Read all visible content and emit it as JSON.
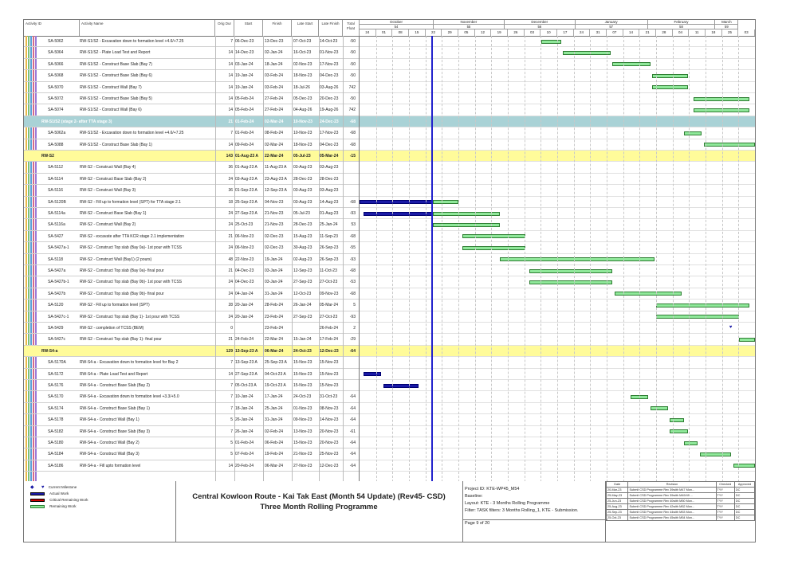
{
  "columns": {
    "activity_id": "Activity ID",
    "activity_name": "Activity Name",
    "orig_dur": "Orig Dur",
    "start": "Start",
    "finish": "Finish",
    "late_start": "Late Start",
    "late_finish": "Late Finish",
    "total_float": "Total Float"
  },
  "timescale": {
    "months": [
      {
        "label": "October",
        "num": "54"
      },
      {
        "label": "November",
        "num": "55"
      },
      {
        "label": "December",
        "num": "56"
      },
      {
        "label": "January",
        "num": "57"
      },
      {
        "label": "February",
        "num": "58"
      },
      {
        "label": "March",
        "num": "59"
      }
    ],
    "days": [
      "24",
      "01",
      "08",
      "15",
      "22",
      "29",
      "05",
      "12",
      "19",
      "26",
      "03",
      "10",
      "17",
      "24",
      "31",
      "07",
      "14",
      "21",
      "28",
      "04",
      "11",
      "18",
      "25",
      "03"
    ]
  },
  "rows": [
    {
      "type": "task",
      "id": "SA-5062",
      "name": "RW-S1/S2 - Excavation down to formation level +4.6/+7.25",
      "dur": "7",
      "start": "06-Dec-23",
      "finish": "13-Dec-23",
      "ls": "07-Oct-23",
      "lf": "14-Oct-23",
      "tf": "-50",
      "bar": {
        "kind": "rem",
        "s": 0.46,
        "e": 0.51
      }
    },
    {
      "type": "task",
      "id": "SA-5064",
      "name": "RW-S1/S2 - Plate Load Test and Report",
      "dur": "14",
      "start": "14-Dec-23",
      "finish": "02-Jan-24",
      "ls": "16-Oct-23",
      "lf": "01-Nov-23",
      "tf": "-50",
      "bar": {
        "kind": "rem",
        "s": 0.515,
        "e": 0.635
      }
    },
    {
      "type": "task",
      "id": "SA-5066",
      "name": "RW-S1/S2 - Construct Base Slab (Bay 7)",
      "dur": "14",
      "start": "03-Jan-24",
      "finish": "18-Jan-24",
      "ls": "02-Nov-23",
      "lf": "17-Nov-23",
      "tf": "-50",
      "bar": {
        "kind": "rem",
        "s": 0.64,
        "e": 0.735
      }
    },
    {
      "type": "task",
      "id": "SA-5068",
      "name": "RW-S1/S2 - Construct Base Slab (Bay 6)",
      "dur": "14",
      "start": "19-Jan-24",
      "finish": "03-Feb-24",
      "ls": "18-Nov-23",
      "lf": "04-Dec-23",
      "tf": "-50",
      "bar": {
        "kind": "rem",
        "s": 0.74,
        "e": 0.83
      }
    },
    {
      "type": "task",
      "id": "SA-5070",
      "name": "RW-S1/S2 - Construct Wall (Bay 7)",
      "dur": "14",
      "start": "19-Jan-24",
      "finish": "03-Feb-24",
      "ls": "18-Jul-26",
      "lf": "03-Aug-26",
      "tf": "742",
      "bar": {
        "kind": "rem",
        "s": 0.74,
        "e": 0.83
      }
    },
    {
      "type": "task",
      "id": "SA-5072",
      "name": "RW-S1/S2 - Construct Base Slab (Bay 5)",
      "dur": "14",
      "start": "05-Feb-24",
      "finish": "27-Feb-24",
      "ls": "05-Dec-23",
      "lf": "20-Dec-23",
      "tf": "-50",
      "bar": {
        "kind": "rem",
        "s": 0.845,
        "e": 0.985
      }
    },
    {
      "type": "task",
      "id": "SA-5074",
      "name": "RW-S1/S2 - Construct Wall (Bay 6)",
      "dur": "14",
      "start": "05-Feb-24",
      "finish": "27-Feb-24",
      "ls": "04-Aug-26",
      "lf": "19-Aug-26",
      "tf": "742",
      "bar": {
        "kind": "rem",
        "s": 0.845,
        "e": 0.985
      }
    },
    {
      "type": "group-t",
      "id": "RW-S1/S2 (stage 2- after TTA stage 3)",
      "dur": "21",
      "start": "01-Feb-24",
      "finish": "02-Mar-24",
      "ls": "10-Nov-23",
      "lf": "24-Dec-23",
      "tf": "-68"
    },
    {
      "type": "task",
      "id": "SA-5062a",
      "name": "RW-S1/S2 - Excavation down to formation level +4.6/+7.25",
      "dur": "7",
      "start": "01-Feb-24",
      "finish": "08-Feb-24",
      "ls": "10-Nov-23",
      "lf": "17-Nov-23",
      "tf": "-68",
      "bar": {
        "kind": "rem",
        "s": 0.82,
        "e": 0.865
      }
    },
    {
      "type": "task",
      "id": "SA-5088",
      "name": "RW-S1/S2 - Construct Base Slab (Bay 1)",
      "dur": "14",
      "start": "09-Feb-24",
      "finish": "02-Mar-24",
      "ls": "18-Nov-23",
      "lf": "04-Dec-23",
      "tf": "-68",
      "bar": {
        "kind": "rem",
        "s": 0.87,
        "e": 1.0
      }
    },
    {
      "type": "group-y",
      "id": "RW-S2",
      "dur": "143",
      "start": "01-Aug-23 A",
      "finish": "22-Mar-24",
      "ls": "05-Jul-23",
      "lf": "05-Mar-24",
      "tf": "-15"
    },
    {
      "type": "task",
      "id": "SA-5112",
      "name": "RW-S2 - Construct Wall (Bay 4)",
      "dur": "36",
      "start": "01-Aug-23 A",
      "finish": "11-Aug-23 A",
      "ls": "03-Aug-23",
      "lf": "03-Aug-23",
      "tf": ""
    },
    {
      "type": "task",
      "id": "SA-5114",
      "name": "RW-S2 - Construct Base Slab (Bay 2)",
      "dur": "24",
      "start": "03-Aug-23 A",
      "finish": "23-Aug-23 A",
      "ls": "28-Dec-23",
      "lf": "28-Dec-23",
      "tf": ""
    },
    {
      "type": "task",
      "id": "SA-5116",
      "name": "RW-S2 - Construct Wall (Bay 3)",
      "dur": "36",
      "start": "01-Sep-23 A",
      "finish": "12-Sep-23 A",
      "ls": "03-Aug-23",
      "lf": "03-Aug-23",
      "tf": ""
    },
    {
      "type": "task",
      "id": "SA-5120B",
      "name": "RW-S2 - Fill up to formation level (SPT) for TTA stage 2.1",
      "dur": "18",
      "start": "25-Sep-23 A",
      "finish": "04-Nov-23",
      "ls": "03-Aug-23",
      "lf": "14-Aug-23",
      "tf": "-68",
      "bar": {
        "kind": "act",
        "s": 0.0,
        "e": 0.185
      },
      "bar2": {
        "kind": "rem",
        "s": 0.185,
        "e": 0.25
      }
    },
    {
      "type": "task",
      "id": "SA-5114a",
      "name": "RW-S2 - Construct Base Slab (Bay 1)",
      "dur": "24",
      "start": "27-Sep-23 A",
      "finish": "21-Nov-23",
      "ls": "05-Jul-23",
      "lf": "01-Aug-23",
      "tf": "-93",
      "bar": {
        "kind": "act",
        "s": 0.01,
        "e": 0.185
      },
      "bar2": {
        "kind": "rem",
        "s": 0.185,
        "e": 0.355
      }
    },
    {
      "type": "task",
      "id": "SA-5116a",
      "name": "RW-S2 - Construct Wall (Bay 2)",
      "dur": "24",
      "start": "25-Oct-23",
      "finish": "21-Nov-23",
      "ls": "28-Dec-23",
      "lf": "25-Jan-24",
      "tf": "53",
      "bar": {
        "kind": "rem",
        "s": 0.185,
        "e": 0.355
      }
    },
    {
      "type": "task",
      "id": "SA-5427",
      "name": "RW-S2 - excavate after TTA KCR stage 2.1 implementation",
      "dur": "21",
      "start": "06-Nov-23",
      "finish": "02-Dec-23",
      "ls": "15-Aug-23",
      "lf": "11-Sep-23",
      "tf": "-68",
      "bar": {
        "kind": "rem",
        "s": 0.26,
        "e": 0.42
      }
    },
    {
      "type": "task",
      "id": "SA-5427a-1",
      "name": "RW-S2 - Construct Top slab (Bay 0a)- 1st pour with TCSS",
      "dur": "24",
      "start": "06-Nov-23",
      "finish": "02-Dec-23",
      "ls": "30-Aug-23",
      "lf": "26-Sep-23",
      "tf": "-55",
      "bar": {
        "kind": "rem",
        "s": 0.26,
        "e": 0.42
      }
    },
    {
      "type": "task",
      "id": "SA-5118",
      "name": "RW-S2 - Construct Wall (Bay1) (2 pours)",
      "dur": "48",
      "start": "22-Nov-23",
      "finish": "19-Jan-24",
      "ls": "02-Aug-23",
      "lf": "26-Sep-23",
      "tf": "-93",
      "bar": {
        "kind": "rem",
        "s": 0.355,
        "e": 0.745
      }
    },
    {
      "type": "task",
      "id": "SA-5427a",
      "name": "RW-S2 - Construct Top slab (Bay 0a)- final pour",
      "dur": "21",
      "start": "04-Dec-23",
      "finish": "03-Jan-24",
      "ls": "12-Sep-23",
      "lf": "11-Oct-23",
      "tf": "-68",
      "bar": {
        "kind": "rem",
        "s": 0.43,
        "e": 0.64
      }
    },
    {
      "type": "task",
      "id": "SA-5427b-1",
      "name": "RW-S2 - Construct Top slab (Bay 0b)- 1st pour with TCSS",
      "dur": "24",
      "start": "04-Dec-23",
      "finish": "03-Jan-24",
      "ls": "27-Sep-23",
      "lf": "27-Oct-23",
      "tf": "-53",
      "bar": {
        "kind": "rem",
        "s": 0.43,
        "e": 0.64
      }
    },
    {
      "type": "task",
      "id": "SA-5427b",
      "name": "RW-S2 - Construct Top slab (Bay 0b)- final pour",
      "dur": "24",
      "start": "04-Jan-24",
      "finish": "31-Jan-24",
      "ls": "12-Oct-23",
      "lf": "09-Nov-23",
      "tf": "-68",
      "bar": {
        "kind": "rem",
        "s": 0.645,
        "e": 0.815
      }
    },
    {
      "type": "task",
      "id": "SA-5120",
      "name": "RW-S2 - Fill up to formation level (SPT)",
      "dur": "28",
      "start": "20-Jan-24",
      "finish": "28-Feb-24",
      "ls": "26-Jan-24",
      "lf": "05-Mar-24",
      "tf": "5",
      "bar": {
        "kind": "rem",
        "s": 0.75,
        "e": 0.985
      }
    },
    {
      "type": "task",
      "id": "SA-5427c-1",
      "name": "RW-S2 - Construct Top slab (Bay 1)- 1st pour with TCSS",
      "dur": "24",
      "start": "20-Jan-24",
      "finish": "23-Feb-24",
      "ls": "27-Sep-23",
      "lf": "27-Oct-23",
      "tf": "-93",
      "bar": {
        "kind": "rem",
        "s": 0.75,
        "e": 0.96
      }
    },
    {
      "type": "task",
      "id": "SA-5429",
      "name": "RW-S2 - completion of TCSS (BEM)",
      "dur": "0",
      "start": "",
      "finish": "23-Feb-24",
      "ls": "",
      "lf": "26-Feb-24",
      "tf": "2",
      "ms": 0.935
    },
    {
      "type": "task",
      "id": "SA-5427c",
      "name": "RW-S2 - Construct Top slab (Bay 1)- final pour",
      "dur": "21",
      "start": "24-Feb-24",
      "finish": "22-Mar-24",
      "ls": "15-Jan-24",
      "lf": "17-Feb-24",
      "tf": "-29",
      "bar": {
        "kind": "rem",
        "s": 0.96,
        "e": 1.0
      }
    },
    {
      "type": "group-y",
      "id": "RW-S4-a",
      "dur": "129",
      "start": "13-Sep-23 A",
      "finish": "06-Mar-24",
      "ls": "24-Oct-23",
      "lf": "12-Dec-23",
      "tf": "-64"
    },
    {
      "type": "task",
      "id": "SA-5170A",
      "name": "RW-S4-a - Excavation down to formation level for Bay 2",
      "dur": "7",
      "start": "13-Sep-23 A",
      "finish": "25-Sep-23 A",
      "ls": "15-Nov-23",
      "lf": "15-Nov-23",
      "tf": ""
    },
    {
      "type": "task",
      "id": "SA-5172",
      "name": "RW-S4-a - Plate Load Test and Report",
      "dur": "14",
      "start": "27-Sep-23 A",
      "finish": "04-Oct-23 A",
      "ls": "15-Nov-23",
      "lf": "15-Nov-23",
      "tf": "",
      "bar": {
        "kind": "act",
        "s": 0.01,
        "e": 0.055
      }
    },
    {
      "type": "task",
      "id": "SA-5176",
      "name": "RW-S4-a - Construct Base Slab (Bay 2)",
      "dur": "7",
      "start": "05-Oct-23 A",
      "finish": "19-Oct-23 A",
      "ls": "15-Nov-23",
      "lf": "15-Nov-23",
      "tf": "",
      "bar": {
        "kind": "act",
        "s": 0.06,
        "e": 0.15
      }
    },
    {
      "type": "task",
      "id": "SA-5170",
      "name": "RW-S4-a - Excavation down to formation level +3.3/+5.0",
      "dur": "7",
      "start": "10-Jan-24",
      "finish": "17-Jan-24",
      "ls": "24-Oct-23",
      "lf": "31-Oct-23",
      "tf": "-64",
      "bar": {
        "kind": "rem",
        "s": 0.685,
        "e": 0.73
      }
    },
    {
      "type": "task",
      "id": "SA-5174",
      "name": "RW-S4-a - Construct Base Slab (Bay 1)",
      "dur": "7",
      "start": "18-Jan-24",
      "finish": "25-Jan-24",
      "ls": "01-Nov-23",
      "lf": "08-Nov-23",
      "tf": "-64",
      "bar": {
        "kind": "rem",
        "s": 0.735,
        "e": 0.78
      }
    },
    {
      "type": "task",
      "id": "SA-5178",
      "name": "RW-S4-a - Construct Wall (Bay 1)",
      "dur": "5",
      "start": "26-Jan-24",
      "finish": "31-Jan-24",
      "ls": "09-Nov-23",
      "lf": "14-Nov-23",
      "tf": "-64",
      "bar": {
        "kind": "rem",
        "s": 0.785,
        "e": 0.82
      }
    },
    {
      "type": "task",
      "id": "SA-5182",
      "name": "RW-S4-a - Construct Base Slab (Bay 3)",
      "dur": "7",
      "start": "26-Jan-24",
      "finish": "02-Feb-24",
      "ls": "13-Nov-23",
      "lf": "20-Nov-23",
      "tf": "-61",
      "bar": {
        "kind": "rem",
        "s": 0.785,
        "e": 0.83
      }
    },
    {
      "type": "task",
      "id": "SA-5180",
      "name": "RW-S4-a - Construct Wall (Bay 2)",
      "dur": "5",
      "start": "01-Feb-24",
      "finish": "06-Feb-24",
      "ls": "15-Nov-23",
      "lf": "20-Nov-23",
      "tf": "-64",
      "bar": {
        "kind": "rem",
        "s": 0.82,
        "e": 0.855
      }
    },
    {
      "type": "task",
      "id": "SA-5184",
      "name": "RW-S4-a - Construct Wall (Bay 3)",
      "dur": "5",
      "start": "07-Feb-24",
      "finish": "19-Feb-24",
      "ls": "21-Nov-23",
      "lf": "25-Nov-23",
      "tf": "-64",
      "bar": {
        "kind": "rem",
        "s": 0.86,
        "e": 0.94
      }
    },
    {
      "type": "task",
      "id": "SA-5186",
      "name": "RW-S4-a - Fill upto formation level",
      "dur": "14",
      "start": "20-Feb-24",
      "finish": "06-Mar-24",
      "ls": "27-Nov-23",
      "lf": "12-Dec-23",
      "tf": "-64",
      "bar": {
        "kind": "rem",
        "s": 0.945,
        "e": 1.0
      }
    }
  ],
  "legend": {
    "milestones": "Current Milestone",
    "actual": "Actual Work",
    "critical": "Critical Remaining Work",
    "remaining": "Remaining Work"
  },
  "title": {
    "line1": "Central Kowloon Route - Kai Tak East (Month 54 Update) (Rev45- CSD)",
    "line2": "Three Month Rolling Programme"
  },
  "project": {
    "id": "Project ID: KTE-WP45_M54",
    "baseline": "Baseline:",
    "layout": "Layout: KTE - 3 Months Rolling Programme",
    "filter": "Filter: TASK filters: 3 Months Rolling_1, KTE - Submission.",
    "page": "Page 9 of 20"
  },
  "revisions": {
    "headers": [
      "Date",
      "Revision",
      "Checked",
      "Approved"
    ],
    "rows": [
      [
        "20-Mar-23",
        "Submit CSD Programme Rev 39with M47 Mon...",
        "TYY",
        "DC"
      ],
      [
        "25-May-23",
        "Submit CSD Programme Rev 39with M49/49 ...",
        "TYY",
        "DC"
      ],
      [
        "25-Jun-23",
        "Submit CSD Programme Rev 40with M50 Mon...",
        "TYY",
        "DC"
      ],
      [
        "25-Aug-23",
        "Submit CSD Programme Rev 42with M52 Mon...",
        "TYY",
        "DC"
      ],
      [
        "25-Sep-23",
        "Submit CSD Programme Rev 44with M53 Mon...",
        "TYY",
        "DC"
      ],
      [
        "25-Oct-23",
        "Submit CSD Programme Rev 45with M54 Mon...",
        "TYY",
        "DC"
      ]
    ]
  },
  "colors": {
    "remaining": "#8fe89a",
    "actual": "#1a1aa6",
    "critical": "#cc0000",
    "group_yellow": "#fffb9a",
    "group_teal": "#a9d2d6",
    "data_date": "#2222cc"
  }
}
